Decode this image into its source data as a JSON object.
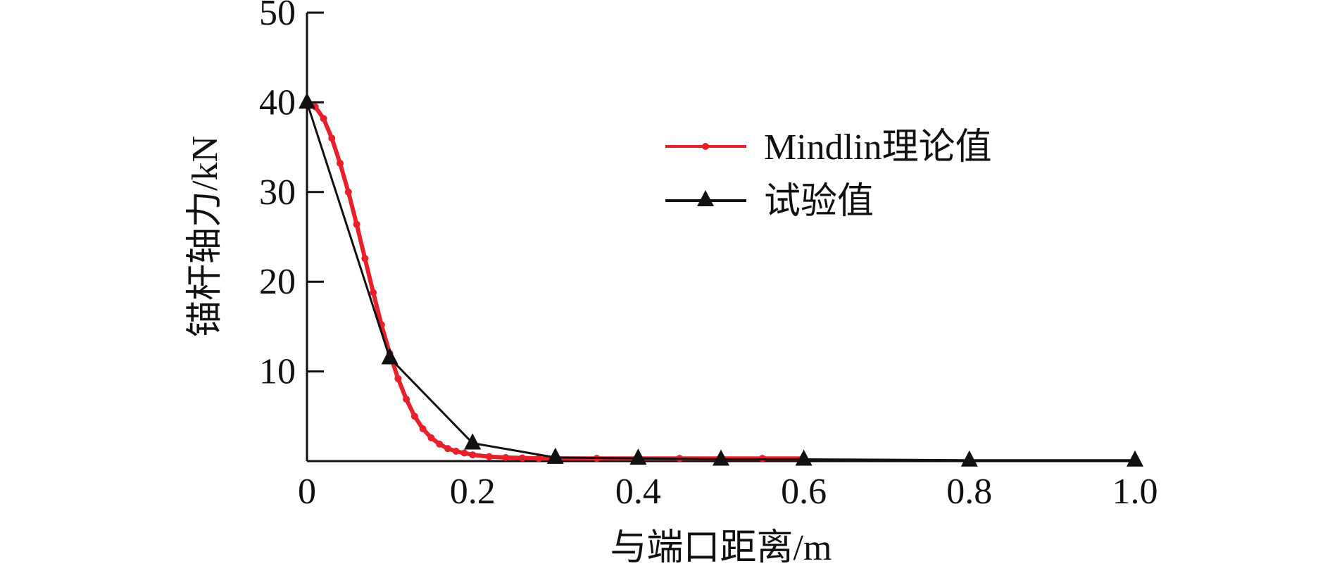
{
  "chart_data": {
    "type": "line",
    "xlabel": "与端口距离/m",
    "ylabel": "锚杆轴力/kN",
    "xlim": [
      0,
      1.0
    ],
    "ylim": [
      0,
      50
    ],
    "x_ticks": [
      "0",
      "0.2",
      "0.4",
      "0.6",
      "0.8",
      "1.0"
    ],
    "x_tick_values": [
      0,
      0.2,
      0.4,
      0.6,
      0.8,
      1.0
    ],
    "y_ticks": [
      "10",
      "20",
      "30",
      "40",
      "50"
    ],
    "y_tick_values": [
      10,
      20,
      30,
      40,
      50
    ],
    "legend_position": "upper-right",
    "series": [
      {
        "name": "Mindlin理论值",
        "color": "#e8202a",
        "marker": "dot",
        "x": [
          0.0,
          0.01,
          0.02,
          0.03,
          0.04,
          0.05,
          0.06,
          0.07,
          0.08,
          0.09,
          0.1,
          0.11,
          0.12,
          0.13,
          0.14,
          0.15,
          0.16,
          0.17,
          0.18,
          0.19,
          0.2,
          0.22,
          0.24,
          0.26,
          0.28,
          0.3,
          0.35,
          0.4,
          0.45,
          0.5,
          0.55,
          0.6
        ],
        "y": [
          40.0,
          39.5,
          38.2,
          36.0,
          33.2,
          30.0,
          26.4,
          22.6,
          18.8,
          15.2,
          12.0,
          9.2,
          6.9,
          5.0,
          3.6,
          2.6,
          1.9,
          1.4,
          1.1,
          0.9,
          0.7,
          0.5,
          0.4,
          0.35,
          0.3,
          0.3,
          0.3,
          0.3,
          0.3,
          0.3,
          0.3,
          0.3
        ]
      },
      {
        "name": "试验值",
        "color": "#111111",
        "marker": "triangle",
        "x": [
          0.0,
          0.1,
          0.2,
          0.3,
          0.4,
          0.5,
          0.6,
          0.8,
          1.0
        ],
        "y": [
          40.0,
          11.5,
          2.0,
          0.4,
          0.3,
          0.2,
          0.2,
          0.1,
          0.1
        ]
      }
    ]
  }
}
